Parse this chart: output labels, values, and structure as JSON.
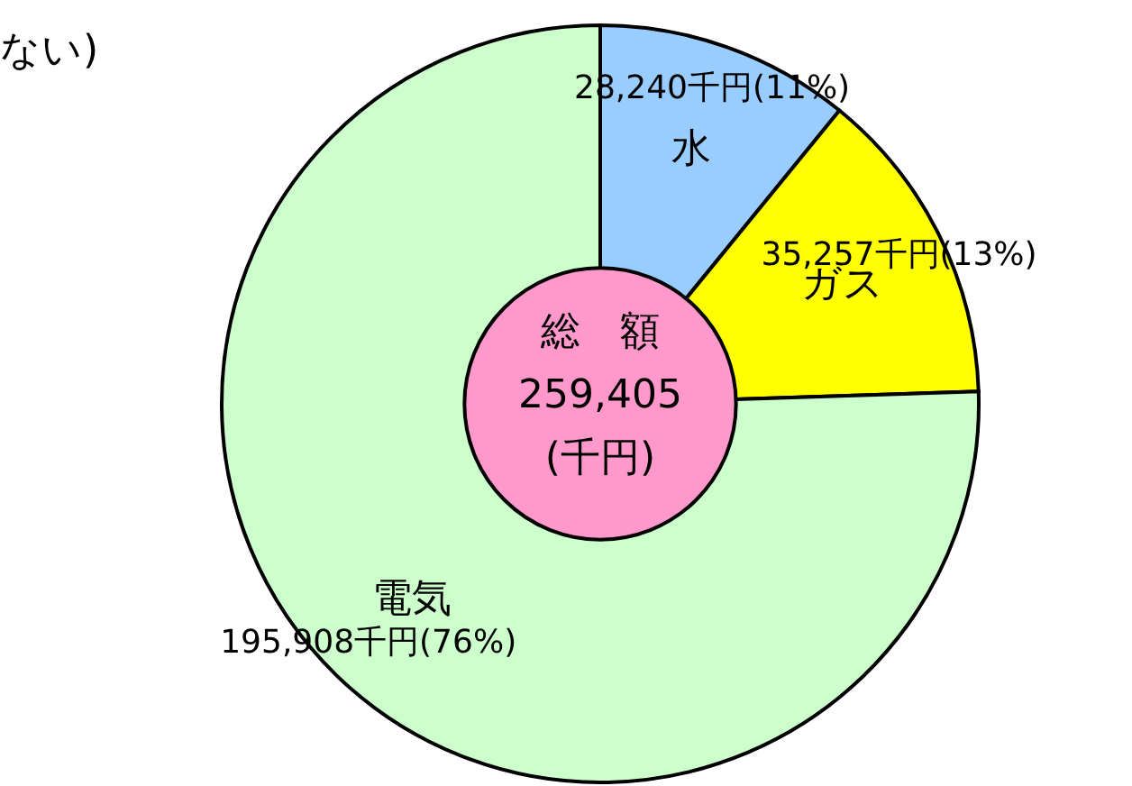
{
  "chart_data": {
    "type": "donut",
    "categories": [
      "水",
      "ガス",
      "電気"
    ],
    "values": [
      28240,
      35257,
      195908
    ],
    "colors": [
      "#99ccff",
      "#ffff00",
      "#ccffcc"
    ],
    "value_labels": [
      "28,240千円(11%)",
      "35,257千円(13%)",
      "195,908千円(76%)"
    ],
    "annotations": [
      "ない)",
      "総　額",
      "259,405",
      "(千円)"
    ]
  }
}
